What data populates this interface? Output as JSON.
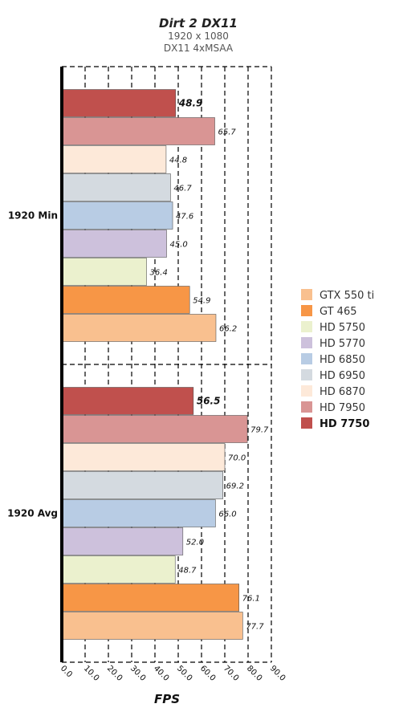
{
  "title": "Dirt 2 DX11",
  "subtitle_lines": [
    "1920 x 1080",
    "DX11 4xMSAA"
  ],
  "chart_data": {
    "type": "bar",
    "orientation": "horizontal",
    "title": "Dirt 2 DX11",
    "subtitle": "1920 x 1080 / DX11 4xMSAA",
    "xlabel": "FPS",
    "ylabel": "",
    "xlim": [
      0,
      90
    ],
    "xticks": [
      "0.0",
      "10.0",
      "20.0",
      "30.0",
      "40.0",
      "50.0",
      "60.0",
      "70.0",
      "80.0",
      "90.0"
    ],
    "grid": true,
    "legend_position": "right",
    "categories": [
      "1920 Min",
      "1920 Avg"
    ],
    "series": [
      {
        "name": "GTX 550 ti",
        "color": "#f9c08f",
        "values": [
          66.2,
          77.7
        ],
        "labels": [
          "66.2",
          "77.7"
        ]
      },
      {
        "name": "GT 465",
        "color": "#f79646",
        "values": [
          54.9,
          76.1
        ],
        "labels": [
          "54.9",
          "76.1"
        ]
      },
      {
        "name": "HD 5750",
        "color": "#ebf1ce",
        "values": [
          36.4,
          48.7
        ],
        "labels": [
          "36.4",
          "48.7"
        ]
      },
      {
        "name": "HD 5770",
        "color": "#cdc1dc",
        "values": [
          45.0,
          52.0
        ],
        "labels": [
          "45.0",
          "52.0"
        ]
      },
      {
        "name": "HD 6850",
        "color": "#b8cce4",
        "values": [
          47.6,
          66.0
        ],
        "labels": [
          "47.6",
          "66.0"
        ]
      },
      {
        "name": "HD 6950",
        "color": "#d4dae0",
        "values": [
          46.7,
          69.2
        ],
        "labels": [
          "46.7",
          "69.2"
        ]
      },
      {
        "name": "HD 6870",
        "color": "#fde9d9",
        "values": [
          44.8,
          70.0
        ],
        "labels": [
          "44.8",
          "70.0"
        ]
      },
      {
        "name": "HD 7950",
        "color": "#d99594",
        "values": [
          65.7,
          79.7
        ],
        "labels": [
          "65.7",
          "79.7"
        ]
      },
      {
        "name": "HD 7750",
        "color": "#c0504d",
        "values": [
          48.9,
          56.5
        ],
        "labels": [
          "48.9",
          "56.5"
        ],
        "highlight": true
      }
    ]
  }
}
